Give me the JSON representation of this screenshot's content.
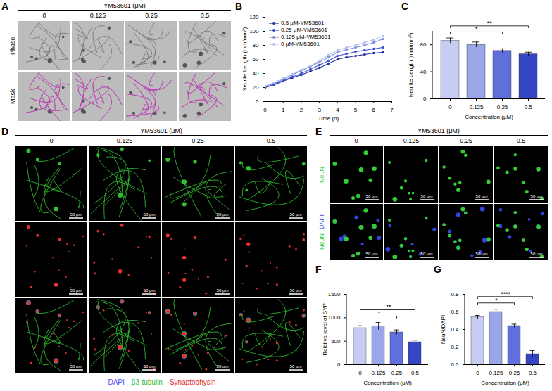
{
  "figure": {
    "A": {
      "label": "A",
      "header": "YM53601 (μM)",
      "columns": [
        "0",
        "0.125",
        "0.25",
        "0.5"
      ],
      "rows": [
        "Phase",
        "Mask"
      ]
    },
    "D": {
      "label": "D",
      "header": "YM53601 (μM)",
      "columns": [
        "0",
        "0.125",
        "0.25",
        "0.5"
      ],
      "row_channels": [
        [
          "β3-tubulin"
        ],
        [
          "Synaptophysin"
        ],
        [
          "DAPI",
          "β3-tubulin",
          "Synaptophysin"
        ]
      ],
      "scale_bar": "50 μm",
      "channels": [
        {
          "name": "DAPI",
          "color": "#4a4af0"
        },
        {
          "name": "β3-tubulin",
          "color": "#30c030"
        },
        {
          "name": "Synaptophysin",
          "color": "#e03030"
        }
      ]
    },
    "E": {
      "label": "E",
      "header": "YM53601 (μM)",
      "columns": [
        "0",
        "0.125",
        "0.25",
        "0.5"
      ],
      "rows": [
        [
          "NeuN"
        ],
        [
          "NeuN",
          "DAPI"
        ]
      ],
      "scale_bar": "50 μm",
      "channels": [
        {
          "name": "NeuN",
          "color": "#33cc33"
        },
        {
          "name": "DAPI",
          "color": "#3344dd"
        }
      ]
    }
  },
  "chart_data": [
    {
      "panel_label": "B",
      "type": "line",
      "x": [
        0,
        0.5,
        1,
        1.5,
        2,
        2.5,
        3,
        3.5,
        4,
        4.5,
        5,
        5.5,
        6,
        6.5
      ],
      "series": [
        {
          "name": "0.5 μM-YM53601",
          "color": "#1f2f9e",
          "values": [
            20,
            24,
            29,
            34,
            38,
            43,
            48,
            54,
            60,
            63,
            65,
            67,
            69,
            70
          ]
        },
        {
          "name": "0.25 μM-YM53601",
          "color": "#3b50d0",
          "values": [
            20,
            25,
            30,
            35,
            40,
            46,
            52,
            58,
            65,
            68,
            71,
            73,
            75,
            77
          ]
        },
        {
          "name": "0.125 μM-YM53601",
          "color": "#7f8fe0",
          "values": [
            21,
            26,
            32,
            38,
            44,
            50,
            56,
            63,
            70,
            74,
            77,
            80,
            84,
            89
          ]
        },
        {
          "name": "0 μM-YM53601",
          "color": "#b5bff0",
          "values": [
            22,
            27,
            33,
            39,
            45,
            51,
            58,
            66,
            73,
            77,
            80,
            84,
            88,
            93
          ]
        }
      ],
      "x_label": "Time (d)",
      "y_label": "Neurite Length (mm/mm²)",
      "xlim": [
        0,
        7
      ],
      "xticks": [
        0,
        1,
        2,
        3,
        4,
        5,
        6,
        7
      ],
      "ylim": [
        0,
        120
      ],
      "yticks": [
        0,
        20,
        40,
        60,
        80,
        100,
        120
      ],
      "legend": "top-left",
      "marker": "circle"
    },
    {
      "panel_label": "C",
      "type": "bar",
      "categories": [
        "0",
        "0.125",
        "0.25",
        "0.5"
      ],
      "values": [
        86,
        80,
        71,
        66
      ],
      "errors": [
        4,
        4,
        3,
        3
      ],
      "colors": [
        "#c7cdf2",
        "#9aa6e8",
        "#5f6fdc",
        "#3546c4"
      ],
      "x_label": "Concentration (μM)",
      "y_label": "Neurite Length (mm/mm²)",
      "ylim": [
        0,
        100
      ],
      "yticks": [
        0,
        40,
        80
      ],
      "significance": [
        {
          "from": "0",
          "to": "0.25",
          "label": "*"
        },
        {
          "from": "0",
          "to": "0.5",
          "label": "**"
        }
      ]
    },
    {
      "panel_label": "F",
      "type": "bar",
      "categories": [
        "0",
        "0.125",
        "0.25",
        "0.5"
      ],
      "values": [
        780,
        820,
        690,
        480
      ],
      "errors": [
        50,
        80,
        50,
        40
      ],
      "colors": [
        "#c7cdf2",
        "#9aa6e8",
        "#5f6fdc",
        "#3546c4"
      ],
      "x_label": "Concentration (μM)",
      "y_label": "Relative level of SYP",
      "ylim": [
        0,
        1500
      ],
      "yticks": [
        0,
        500,
        1000,
        1500
      ],
      "significance": [
        {
          "from": "0",
          "to": "0.25",
          "label": "*"
        },
        {
          "from": "0",
          "to": "0.5",
          "label": "**"
        }
      ]
    },
    {
      "panel_label": "G",
      "type": "bar",
      "categories": [
        "0",
        "0.125",
        "0.25",
        "0.5"
      ],
      "values": [
        0.54,
        0.6,
        0.44,
        0.12
      ],
      "errors": [
        0.02,
        0.03,
        0.02,
        0.04
      ],
      "colors": [
        "#c7cdf2",
        "#9aa6e8",
        "#5f6fdc",
        "#3546c4"
      ],
      "x_label": "Concentration (μM)",
      "y_label": "NeuN/DAPI",
      "ylim": [
        0,
        0.8
      ],
      "yticks": [
        {
          "value": 0,
          "label": "0.0"
        },
        0.2,
        0.4,
        0.6,
        0.8
      ],
      "significance": [
        {
          "from": "0",
          "to": "0.25",
          "label": "*"
        },
        {
          "from": "0",
          "to": "0.5",
          "label": "****"
        }
      ]
    }
  ]
}
